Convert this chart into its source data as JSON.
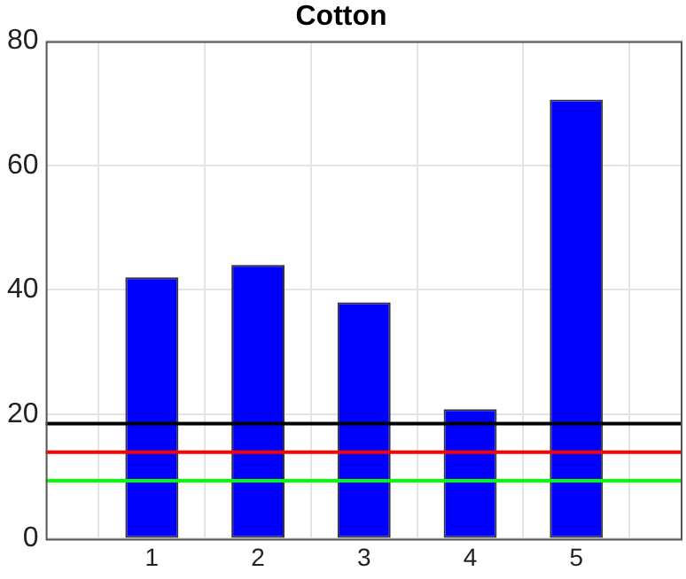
{
  "chart_data": {
    "type": "bar",
    "title": "Cotton",
    "categories": [
      "1",
      "2",
      "3",
      "4",
      "5"
    ],
    "values": [
      42,
      44,
      38,
      20.8,
      70.6
    ],
    "color": "#0000ff",
    "ylim": [
      0,
      80
    ],
    "yticks": [
      0,
      20,
      40,
      60,
      80
    ],
    "grid": true,
    "ref_lines": [
      {
        "axis": "y",
        "value": 18.5,
        "color": "#000000"
      },
      {
        "axis": "y",
        "value": 13.9,
        "color": "#ff0000"
      },
      {
        "axis": "y",
        "value": 9.3,
        "color": "#00ff00"
      }
    ]
  }
}
